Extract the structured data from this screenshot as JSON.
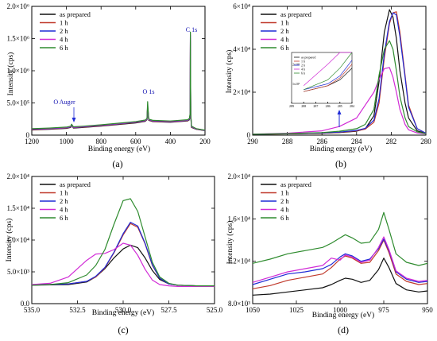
{
  "figure": {
    "legend_series": [
      "as prepared",
      "1 h",
      "2 h",
      "4 h",
      "6 h"
    ],
    "colors": {
      "as prepared": "#111111",
      "1 h": "#c0392b",
      "2 h": "#1f2bd6",
      "4 h": "#d12bd6",
      "6 h": "#2e8b2e"
    }
  },
  "chart_data": [
    {
      "panel": "(a)",
      "type": "line",
      "xlabel": "Binding energy (eV)",
      "ylabel": "Intensity (cps)",
      "xlim": [
        1200,
        200
      ],
      "ylim": [
        0,
        2000000
      ],
      "x_ticks": [
        "1200",
        "1000",
        "800",
        "600",
        "400",
        "200"
      ],
      "y_ticks": [
        "0",
        "5.0×10⁵",
        "1.0×10⁶",
        "1.5×10⁶",
        "2.0×10⁶"
      ],
      "legend": "top-left",
      "annotations": [
        "O Auger",
        "O 1s",
        "C 1s"
      ],
      "series": [
        {
          "name": "as prepared",
          "x": [
            1200,
            1100,
            1000,
            975,
            970,
            960,
            900,
            800,
            700,
            600,
            545,
            535,
            531,
            525,
            500,
            400,
            300,
            290,
            286,
            284.5,
            283,
            282,
            278,
            250,
            200
          ],
          "y": [
            80000,
            90000,
            105000,
            120000,
            150000,
            110000,
            120000,
            140000,
            165000,
            190000,
            215000,
            240000,
            430000,
            230000,
            210000,
            200000,
            220000,
            240000,
            300000,
            1450000,
            700000,
            300000,
            120000,
            90000,
            70000
          ]
        },
        {
          "name": "1 h",
          "x": [
            1200,
            1100,
            1000,
            975,
            970,
            960,
            900,
            800,
            700,
            600,
            545,
            535,
            531,
            525,
            500,
            400,
            300,
            290,
            286,
            284.5,
            283,
            282,
            278,
            250,
            200
          ],
          "y": [
            85000,
            95000,
            110000,
            125000,
            155000,
            115000,
            125000,
            145000,
            170000,
            195000,
            220000,
            245000,
            440000,
            235000,
            215000,
            205000,
            225000,
            245000,
            310000,
            1500000,
            720000,
            310000,
            125000,
            92000,
            72000
          ]
        },
        {
          "name": "2 h",
          "x": [
            1200,
            1100,
            1000,
            975,
            970,
            960,
            900,
            800,
            700,
            600,
            545,
            535,
            531,
            525,
            500,
            400,
            300,
            290,
            286,
            284.5,
            283,
            282,
            278,
            250,
            200
          ],
          "y": [
            90000,
            100000,
            115000,
            130000,
            160000,
            120000,
            130000,
            150000,
            175000,
            200000,
            225000,
            250000,
            450000,
            240000,
            220000,
            210000,
            230000,
            250000,
            320000,
            1550000,
            740000,
            320000,
            130000,
            95000,
            74000
          ]
        },
        {
          "name": "4 h",
          "x": [
            1200,
            1100,
            1000,
            975,
            970,
            960,
            900,
            800,
            700,
            600,
            545,
            535,
            531,
            525,
            500,
            400,
            300,
            290,
            286,
            284.5,
            283,
            282,
            278,
            250,
            200
          ],
          "y": [
            95000,
            105000,
            120000,
            135000,
            165000,
            125000,
            135000,
            155000,
            180000,
            205000,
            230000,
            255000,
            470000,
            245000,
            225000,
            215000,
            235000,
            255000,
            330000,
            1580000,
            760000,
            330000,
            135000,
            98000,
            76000
          ]
        },
        {
          "name": "6 h",
          "x": [
            1200,
            1100,
            1000,
            975,
            970,
            960,
            900,
            800,
            700,
            600,
            545,
            535,
            531,
            525,
            500,
            400,
            300,
            290,
            286,
            284.5,
            283,
            282,
            278,
            250,
            200
          ],
          "y": [
            100000,
            110000,
            125000,
            140000,
            170000,
            130000,
            140000,
            160000,
            185000,
            210000,
            235000,
            260000,
            520000,
            250000,
            230000,
            220000,
            240000,
            260000,
            340000,
            1600000,
            780000,
            340000,
            140000,
            100000,
            78000
          ]
        }
      ]
    },
    {
      "panel": "(b)",
      "type": "line",
      "xlabel": "Binding energy (eV)",
      "ylabel": "Intensity (cps)",
      "xlim": [
        290,
        280
      ],
      "ylim": [
        0,
        60000
      ],
      "x_ticks": [
        "290",
        "288",
        "286",
        "284",
        "282",
        "280"
      ],
      "y_ticks": [
        "0",
        "2×10⁴",
        "4×10⁴",
        "6×10⁴"
      ],
      "legend": "top-left",
      "series": [
        {
          "name": "as prepared",
          "x": [
            290,
            288,
            286,
            285,
            284,
            283.5,
            283,
            282.7,
            282.4,
            282.1,
            281.9,
            281.7,
            281.5,
            281.2,
            281,
            280.5,
            280
          ],
          "y": [
            400,
            600,
            900,
            1200,
            1800,
            3000,
            9000,
            25000,
            48000,
            58500,
            55000,
            45000,
            30000,
            15000,
            8000,
            2000,
            800
          ]
        },
        {
          "name": "1 h",
          "x": [
            290,
            288,
            286,
            285,
            284,
            283.5,
            283,
            282.7,
            282.4,
            282.1,
            281.9,
            281.7,
            281.5,
            281.2,
            281,
            280.5,
            280
          ],
          "y": [
            400,
            600,
            900,
            1300,
            2000,
            2800,
            6000,
            15000,
            36000,
            52000,
            57000,
            57500,
            48000,
            28000,
            14000,
            3000,
            900
          ]
        },
        {
          "name": "2 h",
          "x": [
            290,
            288,
            286,
            285,
            284,
            283.5,
            283,
            282.7,
            282.4,
            282.1,
            281.9,
            281.7,
            281.5,
            281.2,
            281,
            280.5,
            280
          ],
          "y": [
            400,
            700,
            1000,
            1400,
            2200,
            3200,
            7000,
            17000,
            38000,
            53000,
            57000,
            56000,
            46000,
            27000,
            13000,
            3000,
            900
          ]
        },
        {
          "name": "4 h",
          "x": [
            290,
            288,
            286,
            285,
            284,
            283.5,
            283,
            282.7,
            282.4,
            282.1,
            281.9,
            281.7,
            281.5,
            281.2,
            281,
            280.5,
            280
          ],
          "y": [
            500,
            900,
            2000,
            4000,
            8000,
            14000,
            20000,
            26000,
            31000,
            31500,
            27000,
            20000,
            12000,
            5000,
            2500,
            1000,
            600
          ]
        },
        {
          "name": "6 h",
          "x": [
            290,
            288,
            286,
            285,
            284,
            283.5,
            283,
            282.7,
            282.4,
            282.1,
            281.9,
            281.7,
            281.5,
            281.2,
            281,
            280.5,
            280
          ],
          "y": [
            400,
            700,
            1200,
            1800,
            3000,
            5000,
            12000,
            28000,
            40000,
            44000,
            40000,
            30000,
            18000,
            8000,
            4000,
            1500,
            700
          ]
        }
      ],
      "inset": {
        "x_ticks": [
          "289",
          "288",
          "287",
          "286",
          "285",
          "284"
        ],
        "y_ticks": [
          "1x10³",
          "2x10³"
        ],
        "legend": [
          "as prepared",
          "1 h",
          "2 h",
          "4 h",
          "6 h"
        ]
      }
    },
    {
      "panel": "(c)",
      "type": "line",
      "xlabel": "Binding energy (eV)",
      "ylabel": "Intensity (cps)",
      "xlim": [
        535,
        525
      ],
      "ylim": [
        0,
        20000
      ],
      "x_ticks": [
        "535.0",
        "532.5",
        "530.0",
        "527.5",
        "525.0"
      ],
      "y_ticks": [
        "0.0",
        "5.0×10³",
        "1.0×10⁴",
        "1.5×10⁴",
        "2.0×10⁴"
      ],
      "legend": "top-left",
      "series": [
        {
          "name": "as prepared",
          "x": [
            535,
            534,
            533,
            532,
            531.5,
            531,
            530.5,
            530,
            529.6,
            529.2,
            528.8,
            528.4,
            528,
            527.5,
            527,
            526,
            525
          ],
          "y": [
            2900,
            2950,
            3000,
            3400,
            4200,
            5500,
            7200,
            8600,
            9200,
            8800,
            7200,
            5200,
            3800,
            3100,
            2900,
            2800,
            2800
          ]
        },
        {
          "name": "1 h",
          "x": [
            535,
            534,
            533,
            532,
            531.5,
            531,
            530.5,
            530,
            529.6,
            529.2,
            528.8,
            528.4,
            528,
            527.5,
            527,
            526,
            525
          ],
          "y": [
            3000,
            3000,
            3100,
            3500,
            4200,
            5600,
            8000,
            10800,
            12600,
            12000,
            9400,
            6000,
            4000,
            3100,
            2900,
            2800,
            2800
          ]
        },
        {
          "name": "2 h",
          "x": [
            535,
            534,
            533,
            532,
            531.5,
            531,
            530.5,
            530,
            529.6,
            529.2,
            528.8,
            528.4,
            528,
            527.5,
            527,
            526,
            525
          ],
          "y": [
            3000,
            3000,
            3100,
            3500,
            4300,
            5700,
            8100,
            11000,
            12800,
            12200,
            9500,
            6100,
            4000,
            3100,
            2900,
            2800,
            2800
          ]
        },
        {
          "name": "4 h",
          "x": [
            535,
            534,
            533,
            532,
            531.5,
            531,
            530.5,
            530,
            529.6,
            529.2,
            528.8,
            528.4,
            528,
            527.5,
            527,
            526,
            525
          ],
          "y": [
            3000,
            3200,
            4200,
            6800,
            7800,
            7900,
            8500,
            9500,
            9200,
            7600,
            5400,
            3700,
            3000,
            2800,
            2700,
            2700,
            2700
          ]
        },
        {
          "name": "6 h",
          "x": [
            535,
            534,
            533,
            532,
            531.5,
            531,
            530.5,
            530,
            529.6,
            529.2,
            528.8,
            528.4,
            528,
            527.5,
            527,
            526,
            525
          ],
          "y": [
            2900,
            3000,
            3300,
            4500,
            6000,
            8500,
            12500,
            16200,
            16500,
            14500,
            10500,
            6500,
            4200,
            3200,
            2900,
            2800,
            2800
          ]
        }
      ]
    },
    {
      "panel": "(d)",
      "type": "line",
      "xlabel": "Binding energy (eV)",
      "ylabel": "Intensity (cps)",
      "xlim": [
        1050,
        950
      ],
      "ylim": [
        8000,
        20000
      ],
      "x_ticks": [
        "1050",
        "1025",
        "1000",
        "975",
        "950"
      ],
      "y_ticks": [
        "8.0×10³",
        "1.2×10⁴",
        "1.6×10⁴",
        "2.0×10⁴"
      ],
      "legend": "top-left",
      "series": [
        {
          "name": "as prepared",
          "x": [
            1050,
            1040,
            1030,
            1020,
            1010,
            1005,
            1000,
            997,
            993,
            988,
            983,
            978,
            975,
            972,
            968,
            962,
            955,
            950
          ],
          "y": [
            8800,
            8900,
            9100,
            9300,
            9500,
            9800,
            10200,
            10400,
            10300,
            10000,
            10200,
            11200,
            12300,
            11400,
            9900,
            9300,
            9100,
            9200
          ]
        },
        {
          "name": "1 h",
          "x": [
            1050,
            1040,
            1030,
            1020,
            1010,
            1005,
            1000,
            997,
            993,
            988,
            983,
            978,
            975,
            972,
            968,
            962,
            955,
            950
          ],
          "y": [
            9400,
            9700,
            10200,
            10500,
            10800,
            11400,
            12200,
            12500,
            12300,
            11800,
            11900,
            13000,
            14000,
            12800,
            10800,
            10100,
            9800,
            9900
          ]
        },
        {
          "name": "2 h",
          "x": [
            1050,
            1040,
            1030,
            1020,
            1010,
            1005,
            1000,
            997,
            993,
            988,
            983,
            978,
            975,
            972,
            968,
            962,
            955,
            950
          ],
          "y": [
            9800,
            10300,
            10800,
            11000,
            11300,
            11700,
            12400,
            12700,
            12500,
            12000,
            12200,
            13200,
            14100,
            13000,
            11000,
            10300,
            10000,
            10100
          ]
        },
        {
          "name": "4 h",
          "x": [
            1050,
            1040,
            1030,
            1020,
            1010,
            1005,
            1000,
            997,
            993,
            988,
            983,
            978,
            975,
            972,
            968,
            962,
            955,
            950
          ],
          "y": [
            10000,
            10500,
            11000,
            11300,
            11600,
            12300,
            12100,
            12600,
            12400,
            11900,
            12100,
            13300,
            14300,
            13100,
            11100,
            10400,
            10100,
            10200
          ]
        },
        {
          "name": "6 h",
          "x": [
            1050,
            1040,
            1030,
            1020,
            1010,
            1005,
            1000,
            997,
            993,
            988,
            983,
            978,
            975,
            972,
            968,
            962,
            955,
            950
          ],
          "y": [
            11800,
            12200,
            12700,
            13000,
            13300,
            13700,
            14200,
            14500,
            14200,
            13700,
            13800,
            15000,
            16600,
            15000,
            12700,
            11900,
            11600,
            11800
          ]
        }
      ]
    }
  ]
}
